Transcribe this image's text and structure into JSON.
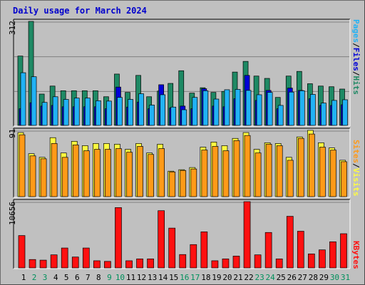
{
  "chart_data": {
    "title": "Daily usage for March 2024",
    "type": "bar",
    "categories": [
      "1",
      "2",
      "3",
      "4",
      "5",
      "6",
      "7",
      "8",
      "9",
      "10",
      "11",
      "12",
      "13",
      "14",
      "15",
      "16",
      "17",
      "18",
      "19",
      "20",
      "21",
      "22",
      "23",
      "24",
      "25",
      "26",
      "27",
      "28",
      "29",
      "30",
      "31"
    ],
    "weekend_days": [
      "2",
      "3",
      "9",
      "10",
      "16",
      "17",
      "23",
      "24",
      "30",
      "31"
    ],
    "colors": {
      "hits": "#1e8964",
      "files": "#0000d8",
      "pages": "#21b2f5",
      "visits": "#fffc40",
      "sites": "#ff9a18",
      "kbytes": "#ff1010",
      "weekday_label": "#000000",
      "weekend_label": "#00905c",
      "title": "#0000cc"
    },
    "panels": [
      {
        "id": "hits-files-pages",
        "max_label": "312",
        "ymax": 312,
        "legend": [
          {
            "text": "Pages",
            "color": "#21b2f5"
          },
          {
            "text": "/",
            "color": "#000000"
          },
          {
            "text": "Files",
            "color": "#0000d8"
          },
          {
            "text": "/",
            "color": "#000000"
          },
          {
            "text": "Hits",
            "color": "#1e8964"
          }
        ],
        "series": [
          {
            "name": "Hits",
            "values": [
              208,
              312,
              94,
              118,
              104,
              104,
              104,
              104,
              86,
              154,
              99,
              150,
              86,
              103,
              126,
              164,
              97,
              113,
              99,
              102,
              160,
              192,
              148,
              141,
              84,
              148,
              162,
              125,
              118,
              116,
              109
            ]
          },
          {
            "name": "Files",
            "values": [
              50,
              68,
              58,
              60,
              56,
              56,
              56,
              56,
              50,
              115,
              55,
              70,
              50,
              122,
              52,
              58,
              50,
              110,
              58,
              56,
              80,
              150,
              75,
              105,
              50,
              112,
              105,
              80,
              60,
              60,
              62
            ]
          },
          {
            "name": "Pages",
            "values": [
              158,
              146,
              69,
              86,
              78,
              82,
              82,
              74,
              73,
              84,
              78,
              95,
              61,
              92,
              55,
              47,
              84,
              104,
              79,
              107,
              108,
              105,
              92,
              99,
              60,
              100,
              104,
              93,
              67,
              75,
              77
            ]
          }
        ]
      },
      {
        "id": "visits-sites",
        "max_label": "91",
        "ymax": 91,
        "legend": [
          {
            "text": "Sites",
            "color": "#ff9a18"
          },
          {
            "text": "/",
            "color": "#000000"
          },
          {
            "text": "Visits",
            "color": "#fffc40"
          }
        ],
        "series": [
          {
            "name": "Visits",
            "values": [
              88,
              59,
              54,
              81,
              60,
              76,
              70,
              73,
              73,
              72,
              65,
              73,
              60,
              72,
              35,
              37,
              40,
              68,
              75,
              70,
              80,
              88,
              65,
              74,
              73,
              54,
              82,
              91,
              74,
              67,
              50
            ]
          },
          {
            "name": "Sites",
            "values": [
              85,
              56,
              52,
              73,
              54,
              71,
              63,
              65,
              65,
              66,
              61,
              69,
              58,
              66,
              34,
              36,
              38,
              64,
              69,
              63,
              77,
              84,
              60,
              72,
              70,
              50,
              80,
              86,
              68,
              64,
              48
            ]
          }
        ]
      },
      {
        "id": "kbytes",
        "max_label": "10656",
        "ymax": 10656,
        "legend": [
          {
            "text": "KBytes",
            "color": "#ff1010"
          }
        ],
        "series": [
          {
            "name": "KBytes",
            "values": [
              5200,
              1350,
              1250,
              2100,
              3200,
              1750,
              3200,
              1150,
              1050,
              9700,
              1150,
              1450,
              1450,
              9200,
              6400,
              2150,
              3750,
              5800,
              1150,
              1450,
              1900,
              10656,
              2100,
              5700,
              1450,
              8300,
              5900,
              2250,
              2900,
              4200,
              5500
            ]
          }
        ]
      }
    ]
  }
}
